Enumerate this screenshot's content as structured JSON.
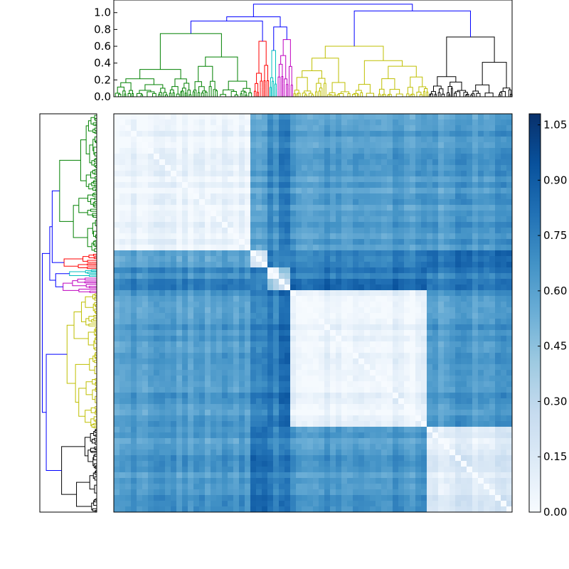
{
  "chart_data": [
    {
      "type": "dendrogram",
      "orientation": "top",
      "ylim": [
        0,
        1.15
      ],
      "yticks": [
        "0.0",
        "0.2",
        "0.4",
        "0.6",
        "0.8",
        "1.0"
      ],
      "cluster_colors": [
        "#008000",
        "#ff0000",
        "#00bfbf",
        "#bf00bf",
        "#bfbf00",
        "#000000"
      ],
      "link_color": "#0000ff",
      "clusters": [
        {
          "color": "#008000",
          "height": 0.75,
          "share": 0.35
        },
        {
          "color": "#ff0000",
          "height": 0.66,
          "share": 0.04
        },
        {
          "color": "#00bfbf",
          "height": 0.55,
          "share": 0.02
        },
        {
          "color": "#bf00bf",
          "height": 0.68,
          "share": 0.04
        },
        {
          "color": "#bfbf00",
          "height": 0.6,
          "share": 0.34
        },
        {
          "color": "#000000",
          "height": 0.71,
          "share": 0.21
        }
      ],
      "upper_links": [
        {
          "from": [
            0,
            1
          ],
          "height": 0.9
        },
        {
          "from": [
            2,
            3
          ],
          "height": 0.83
        },
        {
          "from": [
            4,
            5
          ],
          "height": 1.02
        },
        {
          "from": [
            "a",
            "b"
          ],
          "height": 0.95
        },
        {
          "from": [
            "c",
            "d"
          ],
          "height": 1.1
        }
      ]
    },
    {
      "type": "dendrogram",
      "orientation": "left",
      "mirror_of": "top dendrogram",
      "note_visible": false
    },
    {
      "type": "heatmap",
      "colormap": "Blues",
      "vmin": 0.0,
      "vmax": 1.08,
      "diagonal": 0.0,
      "order": "same leaf order as dendrogram",
      "block_means": [
        [
          0.06,
          0.55,
          0.7,
          0.72,
          0.62,
          0.63
        ],
        [
          0.55,
          0.1,
          0.72,
          0.65,
          0.7,
          0.78
        ],
        [
          0.7,
          0.72,
          0.08,
          0.35,
          0.78,
          0.75
        ],
        [
          0.72,
          0.65,
          0.35,
          0.15,
          0.8,
          0.72
        ],
        [
          0.62,
          0.7,
          0.78,
          0.8,
          0.07,
          0.63
        ],
        [
          0.63,
          0.78,
          0.75,
          0.72,
          0.63,
          0.12
        ]
      ]
    },
    {
      "type": "colorbar",
      "colormap": "Blues",
      "ticks": [
        "0.00",
        "0.15",
        "0.30",
        "0.45",
        "0.60",
        "0.75",
        "0.90",
        "1.05"
      ],
      "tick_values": [
        0,
        0.15,
        0.3,
        0.45,
        0.6,
        0.75,
        0.9,
        1.05
      ],
      "range": [
        0,
        1.08
      ]
    }
  ]
}
